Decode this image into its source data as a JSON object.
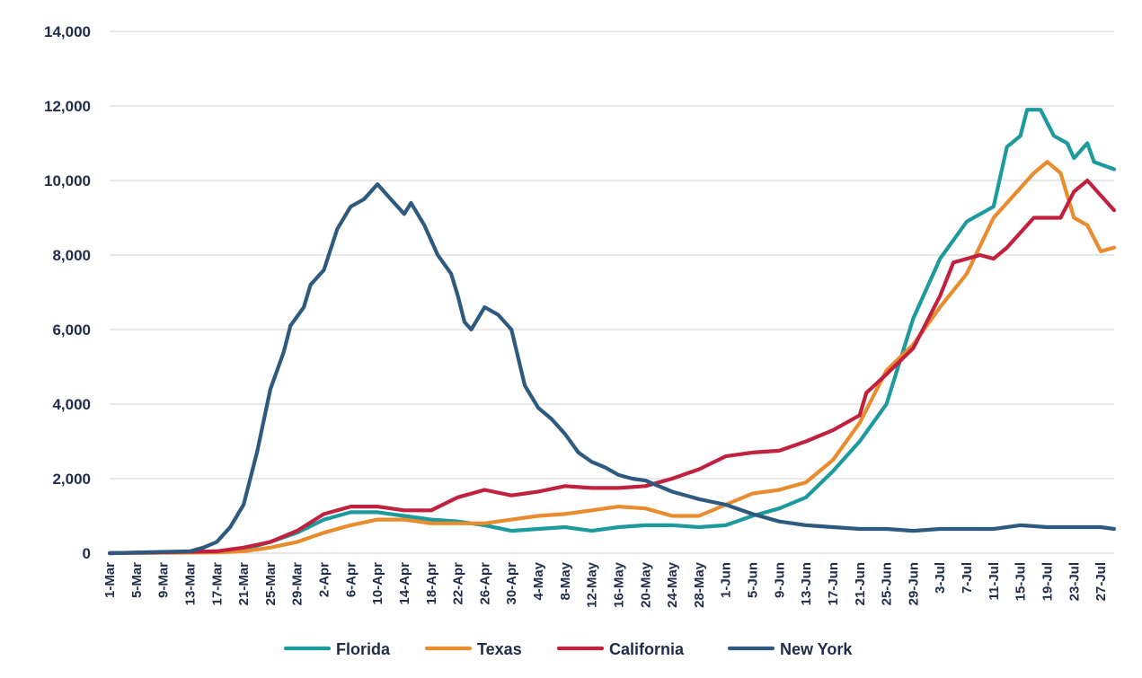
{
  "chart_data": {
    "type": "line",
    "x_start": "1-Mar",
    "x_end": "29-Jul",
    "x_tick_labels": [
      "1-Mar",
      "5-Mar",
      "9-Mar",
      "13-Mar",
      "17-Mar",
      "21-Mar",
      "25-Mar",
      "29-Mar",
      "2-Apr",
      "6-Apr",
      "10-Apr",
      "14-Apr",
      "18-Apr",
      "22-Apr",
      "26-Apr",
      "30-Apr",
      "4-May",
      "8-May",
      "12-May",
      "16-May",
      "20-May",
      "24-May",
      "28-May",
      "1-Jun",
      "5-Jun",
      "9-Jun",
      "13-Jun",
      "17-Jun",
      "21-Jun",
      "25-Jun",
      "29-Jun",
      "3-Jul",
      "7-Jul",
      "11-Jul",
      "15-Jul",
      "19-Jul",
      "23-Jul",
      "27-Jul"
    ],
    "y_tick_labels": [
      "0",
      "2,000",
      "4,000",
      "6,000",
      "8,000",
      "10,000",
      "12,000",
      "14,000"
    ],
    "ylim": [
      0,
      14000
    ],
    "grid": "horizontal",
    "legend_position": "bottom",
    "series": [
      {
        "name": "Florida",
        "color": "#1c9a9c",
        "points": [
          [
            "1-Mar",
            0
          ],
          [
            "17-Mar",
            30
          ],
          [
            "21-Mar",
            100
          ],
          [
            "25-Mar",
            300
          ],
          [
            "29-Mar",
            550
          ],
          [
            "2-Apr",
            900
          ],
          [
            "6-Apr",
            1100
          ],
          [
            "10-Apr",
            1100
          ],
          [
            "14-Apr",
            1000
          ],
          [
            "18-Apr",
            900
          ],
          [
            "22-Apr",
            850
          ],
          [
            "26-Apr",
            750
          ],
          [
            "30-Apr",
            600
          ],
          [
            "4-May",
            650
          ],
          [
            "8-May",
            700
          ],
          [
            "12-May",
            600
          ],
          [
            "16-May",
            700
          ],
          [
            "20-May",
            750
          ],
          [
            "24-May",
            750
          ],
          [
            "28-May",
            700
          ],
          [
            "1-Jun",
            750
          ],
          [
            "5-Jun",
            1000
          ],
          [
            "9-Jun",
            1200
          ],
          [
            "13-Jun",
            1500
          ],
          [
            "17-Jun",
            2200
          ],
          [
            "21-Jun",
            3000
          ],
          [
            "25-Jun",
            4000
          ],
          [
            "29-Jun",
            6300
          ],
          [
            "3-Jul",
            7900
          ],
          [
            "7-Jul",
            8900
          ],
          [
            "11-Jul",
            9300
          ],
          [
            "13-Jul",
            10900
          ],
          [
            "15-Jul",
            11200
          ],
          [
            "16-Jul",
            11900
          ],
          [
            "18-Jul",
            11900
          ],
          [
            "20-Jul",
            11200
          ],
          [
            "22-Jul",
            11000
          ],
          [
            "23-Jul",
            10600
          ],
          [
            "25-Jul",
            11000
          ],
          [
            "26-Jul",
            10500
          ],
          [
            "29-Jul",
            10300
          ]
        ]
      },
      {
        "name": "Texas",
        "color": "#e98c2e",
        "points": [
          [
            "1-Mar",
            0
          ],
          [
            "17-Mar",
            20
          ],
          [
            "21-Mar",
            50
          ],
          [
            "25-Mar",
            150
          ],
          [
            "29-Mar",
            300
          ],
          [
            "2-Apr",
            550
          ],
          [
            "6-Apr",
            750
          ],
          [
            "10-Apr",
            900
          ],
          [
            "14-Apr",
            900
          ],
          [
            "18-Apr",
            800
          ],
          [
            "22-Apr",
            800
          ],
          [
            "26-Apr",
            800
          ],
          [
            "30-Apr",
            900
          ],
          [
            "4-May",
            1000
          ],
          [
            "8-May",
            1050
          ],
          [
            "12-May",
            1150
          ],
          [
            "16-May",
            1250
          ],
          [
            "20-May",
            1200
          ],
          [
            "24-May",
            1000
          ],
          [
            "28-May",
            1000
          ],
          [
            "1-Jun",
            1300
          ],
          [
            "5-Jun",
            1600
          ],
          [
            "9-Jun",
            1700
          ],
          [
            "13-Jun",
            1900
          ],
          [
            "17-Jun",
            2500
          ],
          [
            "21-Jun",
            3500
          ],
          [
            "25-Jun",
            4900
          ],
          [
            "29-Jun",
            5600
          ],
          [
            "3-Jul",
            6600
          ],
          [
            "7-Jul",
            7500
          ],
          [
            "11-Jul",
            9000
          ],
          [
            "15-Jul",
            9800
          ],
          [
            "17-Jul",
            10200
          ],
          [
            "19-Jul",
            10500
          ],
          [
            "21-Jul",
            10200
          ],
          [
            "23-Jul",
            9000
          ],
          [
            "25-Jul",
            8800
          ],
          [
            "27-Jul",
            8100
          ],
          [
            "29-Jul",
            8200
          ]
        ]
      },
      {
        "name": "California",
        "color": "#c0213e",
        "points": [
          [
            "1-Mar",
            0
          ],
          [
            "17-Mar",
            50
          ],
          [
            "21-Mar",
            150
          ],
          [
            "25-Mar",
            300
          ],
          [
            "29-Mar",
            600
          ],
          [
            "2-Apr",
            1050
          ],
          [
            "6-Apr",
            1250
          ],
          [
            "10-Apr",
            1250
          ],
          [
            "14-Apr",
            1150
          ],
          [
            "18-Apr",
            1150
          ],
          [
            "22-Apr",
            1500
          ],
          [
            "26-Apr",
            1700
          ],
          [
            "30-Apr",
            1550
          ],
          [
            "4-May",
            1650
          ],
          [
            "8-May",
            1800
          ],
          [
            "12-May",
            1750
          ],
          [
            "16-May",
            1750
          ],
          [
            "20-May",
            1800
          ],
          [
            "24-May",
            2000
          ],
          [
            "28-May",
            2250
          ],
          [
            "1-Jun",
            2600
          ],
          [
            "5-Jun",
            2700
          ],
          [
            "9-Jun",
            2750
          ],
          [
            "13-Jun",
            3000
          ],
          [
            "17-Jun",
            3300
          ],
          [
            "21-Jun",
            3700
          ],
          [
            "22-Jun",
            4300
          ],
          [
            "25-Jun",
            4800
          ],
          [
            "29-Jun",
            5500
          ],
          [
            "3-Jul",
            6900
          ],
          [
            "5-Jul",
            7800
          ],
          [
            "9-Jul",
            8000
          ],
          [
            "11-Jul",
            7900
          ],
          [
            "13-Jul",
            8200
          ],
          [
            "17-Jul",
            9000
          ],
          [
            "21-Jul",
            9000
          ],
          [
            "23-Jul",
            9700
          ],
          [
            "25-Jul",
            10000
          ],
          [
            "27-Jul",
            9600
          ],
          [
            "29-Jul",
            9200
          ]
        ]
      },
      {
        "name": "New York",
        "color": "#2d5a7e",
        "points": [
          [
            "1-Mar",
            0
          ],
          [
            "13-Mar",
            50
          ],
          [
            "15-Mar",
            150
          ],
          [
            "17-Mar",
            300
          ],
          [
            "19-Mar",
            700
          ],
          [
            "21-Mar",
            1300
          ],
          [
            "23-Mar",
            2700
          ],
          [
            "25-Mar",
            4400
          ],
          [
            "27-Mar",
            5400
          ],
          [
            "28-Mar",
            6100
          ],
          [
            "30-Mar",
            6600
          ],
          [
            "31-Mar",
            7200
          ],
          [
            "2-Apr",
            7600
          ],
          [
            "4-Apr",
            8700
          ],
          [
            "6-Apr",
            9300
          ],
          [
            "8-Apr",
            9500
          ],
          [
            "10-Apr",
            9900
          ],
          [
            "12-Apr",
            9500
          ],
          [
            "14-Apr",
            9100
          ],
          [
            "15-Apr",
            9400
          ],
          [
            "17-Apr",
            8800
          ],
          [
            "19-Apr",
            8000
          ],
          [
            "21-Apr",
            7500
          ],
          [
            "22-Apr",
            6900
          ],
          [
            "23-Apr",
            6200
          ],
          [
            "24-Apr",
            6000
          ],
          [
            "26-Apr",
            6600
          ],
          [
            "28-Apr",
            6400
          ],
          [
            "30-Apr",
            6000
          ],
          [
            "2-May",
            4500
          ],
          [
            "4-May",
            3900
          ],
          [
            "6-May",
            3600
          ],
          [
            "8-May",
            3200
          ],
          [
            "10-May",
            2700
          ],
          [
            "12-May",
            2450
          ],
          [
            "14-May",
            2300
          ],
          [
            "16-May",
            2100
          ],
          [
            "18-May",
            2000
          ],
          [
            "20-May",
            1950
          ],
          [
            "22-May",
            1800
          ],
          [
            "24-May",
            1650
          ],
          [
            "28-May",
            1450
          ],
          [
            "1-Jun",
            1300
          ],
          [
            "5-Jun",
            1050
          ],
          [
            "9-Jun",
            850
          ],
          [
            "13-Jun",
            750
          ],
          [
            "17-Jun",
            700
          ],
          [
            "21-Jun",
            650
          ],
          [
            "25-Jun",
            650
          ],
          [
            "29-Jun",
            600
          ],
          [
            "3-Jul",
            650
          ],
          [
            "7-Jul",
            650
          ],
          [
            "11-Jul",
            650
          ],
          [
            "15-Jul",
            750
          ],
          [
            "19-Jul",
            700
          ],
          [
            "23-Jul",
            700
          ],
          [
            "27-Jul",
            700
          ],
          [
            "29-Jul",
            650
          ]
        ]
      }
    ]
  }
}
